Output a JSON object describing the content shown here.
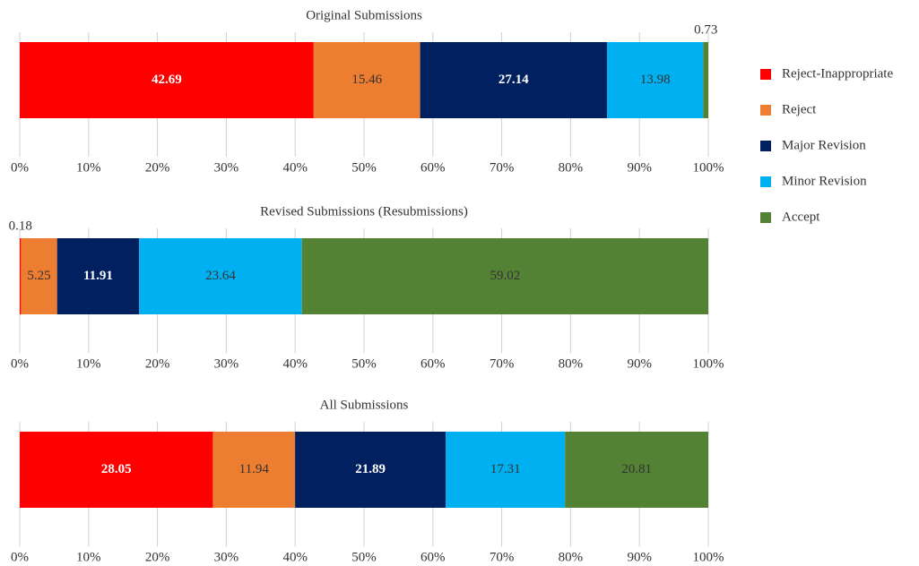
{
  "legend": {
    "names": [
      "Reject-Inappropriate",
      "Reject",
      "Major Revision",
      "Minor Revision",
      "Accept"
    ],
    "colors": [
      "#ff0000",
      "#ed7d31",
      "#002060",
      "#00b0f0",
      "#548235"
    ]
  },
  "chart_data": [
    {
      "type": "stacked_hbar",
      "title": "Original Submissions",
      "values": [
        42.69,
        15.46,
        27.14,
        13.98,
        0.73
      ],
      "xlim": [
        0,
        100
      ],
      "xticks": [
        {
          "value": 0,
          "label": "0%"
        },
        {
          "value": 10,
          "label": "10%"
        },
        {
          "value": 20,
          "label": "20%"
        },
        {
          "value": 30,
          "label": "30%"
        },
        {
          "value": 40,
          "label": "40%"
        },
        {
          "value": 50,
          "label": "50%"
        },
        {
          "value": 60,
          "label": "60%"
        },
        {
          "value": 70,
          "label": "70%"
        },
        {
          "value": 80,
          "label": "80%"
        },
        {
          "value": 90,
          "label": "90%"
        },
        {
          "value": 100,
          "label": "100%"
        }
      ],
      "grid": true
    },
    {
      "type": "stacked_hbar",
      "title": "Revised Submissions (Resubmissions)",
      "values": [
        0.18,
        5.25,
        11.91,
        23.64,
        59.02
      ],
      "xlim": [
        0,
        100
      ],
      "xticks": [
        {
          "value": 0,
          "label": "0%"
        },
        {
          "value": 10,
          "label": "10%"
        },
        {
          "value": 20,
          "label": "20%"
        },
        {
          "value": 30,
          "label": "30%"
        },
        {
          "value": 40,
          "label": "40%"
        },
        {
          "value": 50,
          "label": "50%"
        },
        {
          "value": 60,
          "label": "60%"
        },
        {
          "value": 70,
          "label": "70%"
        },
        {
          "value": 80,
          "label": "80%"
        },
        {
          "value": 90,
          "label": "90%"
        },
        {
          "value": 100,
          "label": "100%"
        }
      ],
      "grid": true
    },
    {
      "type": "stacked_hbar",
      "title": "All Submissions",
      "values": [
        28.05,
        11.94,
        21.89,
        17.31,
        20.81
      ],
      "xlim": [
        0,
        100
      ],
      "xticks": [
        {
          "value": 0,
          "label": "0%"
        },
        {
          "value": 10,
          "label": "10%"
        },
        {
          "value": 20,
          "label": "20%"
        },
        {
          "value": 30,
          "label": "30%"
        },
        {
          "value": 40,
          "label": "40%"
        },
        {
          "value": 50,
          "label": "50%"
        },
        {
          "value": 60,
          "label": "60%"
        },
        {
          "value": 70,
          "label": "70%"
        },
        {
          "value": 80,
          "label": "80%"
        },
        {
          "value": 90,
          "label": "90%"
        },
        {
          "value": 100,
          "label": "100%"
        }
      ],
      "grid": true
    }
  ]
}
